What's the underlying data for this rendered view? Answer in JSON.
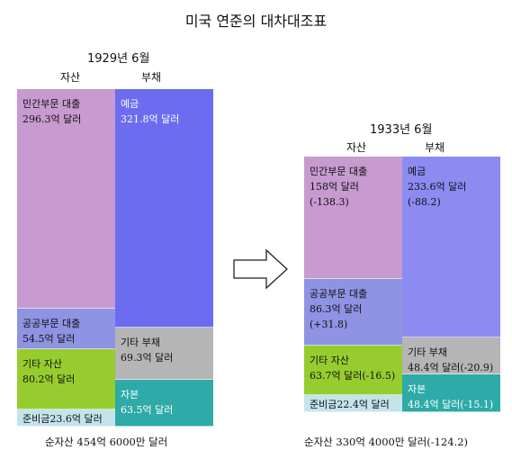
{
  "title": "미국 연준의 대차대조표",
  "chart_data": [
    {
      "type": "stacked-bar",
      "period": "1929년 6월",
      "columns": [
        "자산",
        "부채"
      ],
      "assets": [
        {
          "name": "민간부문 대출",
          "value": 296.3,
          "label": "민간부문 대출\n296.3억 달러",
          "color": "#c79ad0"
        },
        {
          "name": "공공부문 대출",
          "value": 54.5,
          "label": "공공부문 대출\n54.5억 달러",
          "color": "#8f93e3"
        },
        {
          "name": "기타 자산",
          "value": 80.2,
          "label": "기타 자산\n80.2억 달러",
          "color": "#97cc2e"
        },
        {
          "name": "준비금",
          "value": 23.6,
          "label": "준비금23.6억 달러",
          "color": "#c4e4ec"
        }
      ],
      "liabilities": [
        {
          "name": "예금",
          "value": 321.8,
          "label": "예금\n321.8억 달러",
          "color": "#6c6cf0"
        },
        {
          "name": "기타 부채",
          "value": 69.3,
          "label": "기타 부채\n69.3억 달러",
          "color": "#b5b5b5"
        },
        {
          "name": "자본",
          "value": 63.5,
          "label": "자본\n63.5억 달러",
          "color": "#2eaaa8"
        }
      ],
      "total": "순자산 454억 6000만 달러"
    },
    {
      "type": "stacked-bar",
      "period": "1933년 6월",
      "columns": [
        "자산",
        "부채"
      ],
      "assets": [
        {
          "name": "민간부문 대출",
          "value": 158,
          "change": -138.3,
          "label": "민간부문 대출\n158억 달러\n(-138.3)",
          "color": "#c79ad0"
        },
        {
          "name": "공공부문 대출",
          "value": 86.3,
          "change": 31.8,
          "label": "공공부문 대출\n86.3억 달러\n(+31.8)",
          "color": "#8f93e3"
        },
        {
          "name": "기타 자산",
          "value": 63.7,
          "change": -16.5,
          "label": "기타 자산\n63.7억 달러(-16.5)",
          "color": "#97cc2e"
        },
        {
          "name": "준비금",
          "value": 22.4,
          "change": -1.2,
          "label": "준비금22.4억 달러\n(-1.2)",
          "color": "#c4e4ec"
        }
      ],
      "liabilities": [
        {
          "name": "예금",
          "value": 233.6,
          "change": -88.2,
          "label": "예금\n233.6억 달러\n(-88.2)",
          "color": "#8b8bf2"
        },
        {
          "name": "기타 부채",
          "value": 48.4,
          "change": -20.9,
          "label": "기타 부채\n48.4억 달러(-20.9)",
          "color": "#b5b5b5"
        },
        {
          "name": "자본",
          "value": 48.4,
          "change": -15.1,
          "label": "자본\n48.4억 달러(-15.1)",
          "color": "#2eaaa8"
        }
      ],
      "total": "순자산 330억 4000만 달러(-124.2)"
    }
  ]
}
